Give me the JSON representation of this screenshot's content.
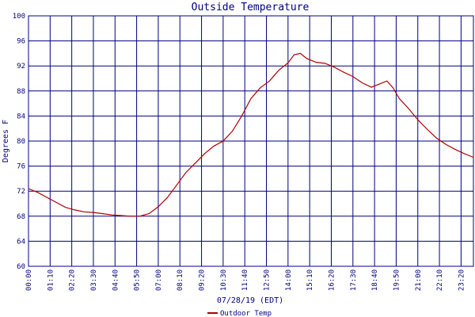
{
  "chart_data": {
    "type": "line",
    "title": "Outside Temperature",
    "xlabel": "07/28/19 (EDT)",
    "ylabel": "Degrees F",
    "grid": true,
    "legend_placement": "bottom-left",
    "ylim": [
      60,
      100
    ],
    "y_ticks": [
      "60",
      "64",
      "68",
      "72",
      "76",
      "80",
      "84",
      "88",
      "92",
      "96",
      "100"
    ],
    "x_ticks": [
      "00:00",
      "01:10",
      "02:20",
      "03:30",
      "04:40",
      "05:50",
      "07:00",
      "08:10",
      "09:20",
      "10:30",
      "11:40",
      "12:50",
      "14:00",
      "15:10",
      "16:20",
      "17:30",
      "18:40",
      "19:50",
      "21:00",
      "22:10",
      "23:20"
    ],
    "x_tick_minutes": [
      0,
      70,
      140,
      210,
      280,
      350,
      420,
      490,
      560,
      630,
      700,
      770,
      840,
      910,
      980,
      1050,
      1120,
      1190,
      1260,
      1330,
      1400
    ],
    "xlim_minutes": [
      0,
      1440
    ],
    "series": [
      {
        "name": "Outdoor Temp",
        "color": "#b00000",
        "x_minutes": [
          0,
          30,
          60,
          90,
          120,
          150,
          180,
          210,
          240,
          270,
          300,
          330,
          360,
          390,
          420,
          450,
          480,
          510,
          540,
          570,
          600,
          630,
          660,
          690,
          720,
          750,
          780,
          810,
          840,
          860,
          880,
          900,
          930,
          960,
          990,
          1020,
          1050,
          1080,
          1110,
          1130,
          1160,
          1180,
          1200,
          1230,
          1260,
          1290,
          1320,
          1350,
          1380,
          1410,
          1440
        ],
        "values": [
          72.4,
          71.8,
          71.0,
          70.2,
          69.4,
          69.0,
          68.7,
          68.6,
          68.4,
          68.2,
          68.1,
          68.0,
          68.0,
          68.4,
          69.5,
          71.0,
          73.0,
          75.0,
          76.5,
          78.0,
          79.2,
          80.0,
          81.6,
          84.0,
          86.8,
          88.5,
          89.6,
          91.3,
          92.5,
          93.8,
          94.0,
          93.2,
          92.6,
          92.4,
          91.8,
          91.0,
          90.3,
          89.3,
          88.6,
          89.0,
          89.6,
          88.5,
          86.8,
          85.2,
          83.4,
          81.9,
          80.5,
          79.5,
          78.7,
          78.0,
          77.4
        ]
      }
    ]
  }
}
